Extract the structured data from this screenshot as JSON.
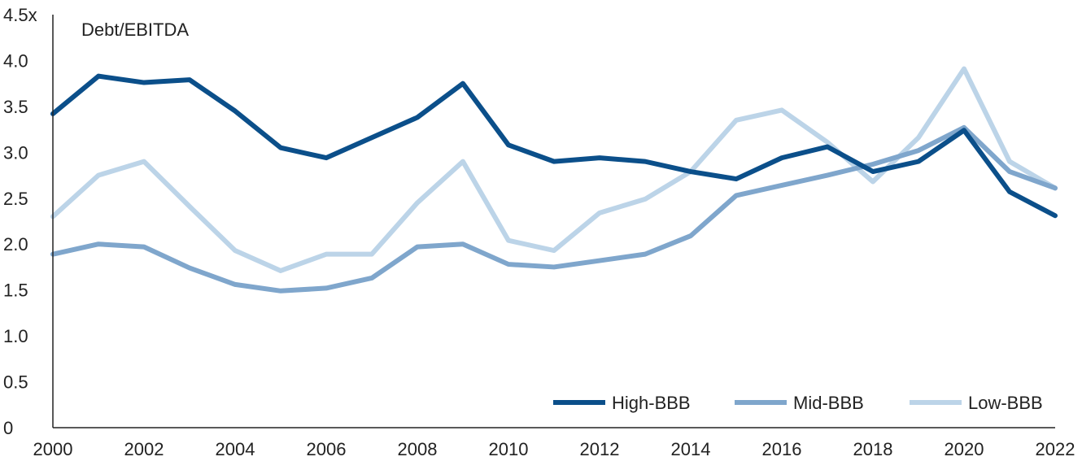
{
  "chart_data": {
    "type": "line",
    "title": "",
    "xlabel": "",
    "ylabel": "Debt/EBITDA",
    "x": [
      2000,
      2001,
      2002,
      2003,
      2004,
      2005,
      2006,
      2007,
      2008,
      2009,
      2010,
      2011,
      2012,
      2013,
      2014,
      2015,
      2016,
      2017,
      2018,
      2019,
      2020,
      2021,
      2022
    ],
    "xlim": [
      2000,
      2022
    ],
    "ylim": [
      0,
      4.5
    ],
    "x_ticks": [
      "2000",
      "2002",
      "2004",
      "2006",
      "2008",
      "2010",
      "2012",
      "2014",
      "2016",
      "2018",
      "2020",
      "2022"
    ],
    "y_ticks": [
      {
        "value": 0,
        "label": "0"
      },
      {
        "value": 0.5,
        "label": "0.5"
      },
      {
        "value": 1.0,
        "label": "1.0"
      },
      {
        "value": 1.5,
        "label": "1.5"
      },
      {
        "value": 2.0,
        "label": "2.0"
      },
      {
        "value": 2.5,
        "label": "2.5"
      },
      {
        "value": 3.0,
        "label": "3.0"
      },
      {
        "value": 3.5,
        "label": "3.5"
      },
      {
        "value": 4.0,
        "label": "4.0"
      },
      {
        "value": 4.5,
        "label": "4.5x"
      }
    ],
    "grid": false,
    "legend_position": "bottom-right",
    "series": [
      {
        "name": "High-BBB",
        "color": "#0b4f8a",
        "values": [
          3.42,
          3.83,
          3.76,
          3.79,
          3.45,
          3.05,
          2.94,
          3.16,
          3.38,
          3.75,
          3.08,
          2.9,
          2.94,
          2.9,
          2.79,
          2.71,
          2.94,
          3.06,
          2.79,
          2.9,
          3.24,
          2.57,
          2.31
        ]
      },
      {
        "name": "Mid-BBB",
        "color": "#7fa6cc",
        "values": [
          1.89,
          2.0,
          1.97,
          1.74,
          1.56,
          1.49,
          1.52,
          1.63,
          1.97,
          2.0,
          1.78,
          1.75,
          1.82,
          1.89,
          2.09,
          2.53,
          2.64,
          2.75,
          2.87,
          3.02,
          3.27,
          2.79,
          2.61
        ]
      },
      {
        "name": "Low-BBB",
        "color": "#bcd4e8",
        "values": [
          2.3,
          2.75,
          2.9,
          2.41,
          1.93,
          1.71,
          1.89,
          1.89,
          2.45,
          2.9,
          2.04,
          1.93,
          2.34,
          2.49,
          2.79,
          3.35,
          3.46,
          3.11,
          2.68,
          3.16,
          3.91,
          2.9,
          2.61
        ]
      }
    ]
  }
}
